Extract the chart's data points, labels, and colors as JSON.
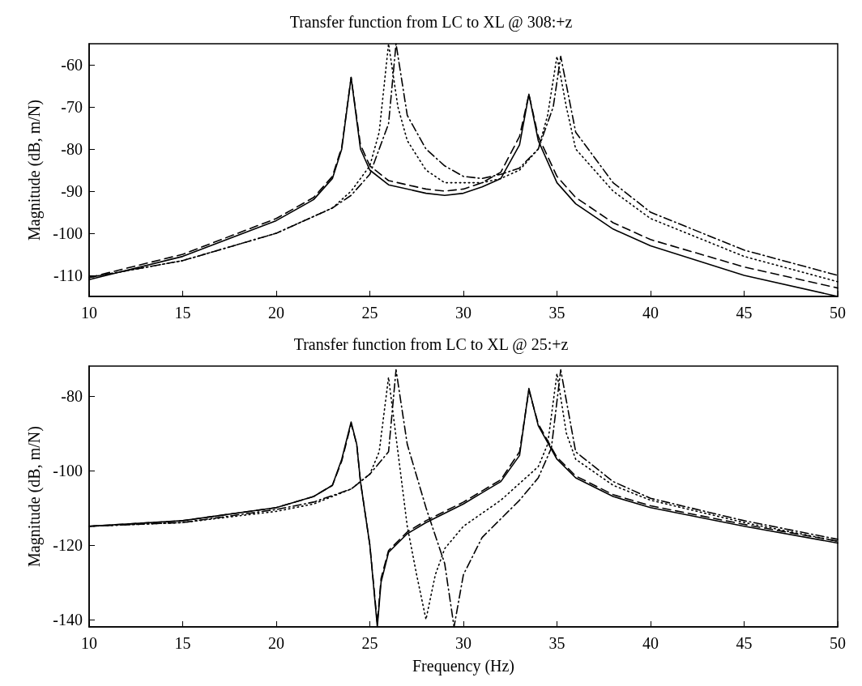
{
  "chart_data": [
    {
      "type": "line",
      "title": "Transfer function from LC to XL @ 308:+z",
      "ylabel": "Magnitude (dB, m/N)",
      "xlim": [
        10,
        50
      ],
      "xticks": [
        10,
        15,
        20,
        25,
        30,
        35,
        40,
        45,
        50
      ],
      "ylim": [
        -115,
        -55
      ],
      "yticks": [
        -110,
        -100,
        -90,
        -80,
        -70,
        -60
      ],
      "grid": false,
      "marker": "none",
      "series": [
        {
          "color": "#000000",
          "line_style": "solid",
          "x": [
            10,
            15,
            20,
            22,
            23,
            23.5,
            24,
            24.5,
            25,
            26,
            28,
            29,
            30,
            31,
            32,
            33,
            33.5,
            34,
            35,
            36,
            38,
            40,
            45,
            50
          ],
          "values": [
            -111,
            -105.5,
            -97,
            -92,
            -87,
            -80,
            -63,
            -80,
            -85,
            -88.5,
            -90.5,
            -91,
            -90.5,
            -89,
            -87,
            -79,
            -67,
            -78,
            -88,
            -93,
            -99,
            -103,
            -110,
            -115
          ]
        },
        {
          "color": "#000000",
          "line_style": "dashed",
          "x": [
            10,
            15,
            20,
            22,
            23,
            23.5,
            24,
            24.5,
            25,
            26,
            28,
            29,
            30,
            31,
            32,
            33,
            33.5,
            34,
            35,
            36,
            38,
            40,
            45,
            50
          ],
          "values": [
            -110.5,
            -105,
            -96.5,
            -91.5,
            -86.5,
            -79.5,
            -63,
            -79,
            -84,
            -87.5,
            -89.5,
            -90,
            -89.5,
            -88,
            -85.5,
            -77,
            -67,
            -77,
            -86.5,
            -91.5,
            -97.5,
            -101.5,
            -108,
            -113
          ]
        },
        {
          "color": "#000000",
          "line_style": "dotted",
          "x": [
            10,
            15,
            20,
            23,
            24,
            25,
            25.5,
            26,
            26.5,
            27,
            28,
            29,
            30,
            31,
            32,
            33,
            34,
            34.5,
            35,
            35.5,
            36,
            38,
            40,
            45,
            50
          ],
          "values": [
            -110.5,
            -106.5,
            -100,
            -94,
            -90,
            -84,
            -76,
            -55,
            -70,
            -78,
            -85,
            -88,
            -88,
            -88,
            -87,
            -85,
            -80,
            -72,
            -58,
            -70,
            -80,
            -90,
            -96.5,
            -105.5,
            -111.5
          ]
        },
        {
          "color": "#000000",
          "line_style": "dashdot",
          "x": [
            10,
            15,
            20,
            23,
            24,
            25,
            26,
            26.4,
            27,
            28,
            29,
            30,
            31,
            32,
            33,
            34,
            34.8,
            35.2,
            36,
            38,
            40,
            45,
            50
          ],
          "values": [
            -110.5,
            -106.5,
            -100,
            -94,
            -91,
            -86,
            -74,
            -55,
            -72,
            -80,
            -84,
            -86.5,
            -87,
            -86,
            -84.5,
            -80,
            -70,
            -58,
            -76,
            -88,
            -95,
            -104,
            -110
          ]
        }
      ]
    },
    {
      "type": "line",
      "title": "Transfer function from LC to XL @ 25:+z",
      "xlabel": "Frequency (Hz)",
      "ylabel": "Magnitude (dB, m/N)",
      "xlim": [
        10,
        50
      ],
      "xticks": [
        10,
        15,
        20,
        25,
        30,
        35,
        40,
        45,
        50
      ],
      "ylim": [
        -142,
        -72
      ],
      "yticks": [
        -140,
        -120,
        -100,
        -80
      ],
      "grid": false,
      "marker": "none",
      "series": [
        {
          "color": "#000000",
          "line_style": "solid",
          "x": [
            10,
            15,
            20,
            22,
            23,
            23.5,
            24,
            24.3,
            24.5,
            25,
            25.4,
            25.6,
            26,
            27,
            28,
            30,
            31,
            32,
            33,
            33.5,
            34,
            35,
            36,
            38,
            40,
            45,
            50
          ],
          "values": [
            -115,
            -113.5,
            -110,
            -107,
            -104,
            -97,
            -87,
            -93,
            -103,
            -120,
            -142,
            -130,
            -122,
            -117,
            -114,
            -109,
            -106,
            -103,
            -96,
            -78,
            -88,
            -97,
            -102,
            -107,
            -110,
            -115,
            -119.5
          ]
        },
        {
          "color": "#000000",
          "line_style": "dashed",
          "x": [
            10,
            15,
            20,
            22,
            23,
            23.5,
            24,
            24.3,
            24.5,
            25,
            25.4,
            25.6,
            26,
            27,
            28,
            30,
            31,
            32,
            33,
            33.5,
            34,
            35,
            36,
            38,
            40,
            45,
            50
          ],
          "values": [
            -115,
            -113.5,
            -110,
            -107,
            -104,
            -97.5,
            -87.5,
            -93,
            -103,
            -120,
            -141,
            -129,
            -121.5,
            -116.5,
            -113.5,
            -108.5,
            -105.5,
            -102.5,
            -95,
            -78.5,
            -87.5,
            -96.5,
            -101.5,
            -106.5,
            -109.5,
            -114.5,
            -119
          ]
        },
        {
          "color": "#000000",
          "line_style": "dotted",
          "x": [
            10,
            15,
            20,
            22,
            24,
            25,
            25.5,
            26,
            26.5,
            27,
            27.5,
            28,
            28.5,
            29,
            30,
            32,
            34,
            34.5,
            35,
            35.5,
            36,
            38,
            40,
            45,
            50
          ],
          "values": [
            -115,
            -114,
            -111,
            -109,
            -105,
            -101,
            -95,
            -75,
            -95,
            -115,
            -128,
            -140,
            -128,
            -121,
            -115,
            -108,
            -99,
            -93,
            -74,
            -90,
            -97,
            -104,
            -108,
            -114,
            -119
          ]
        },
        {
          "color": "#000000",
          "line_style": "dashdot",
          "x": [
            10,
            15,
            20,
            22,
            24,
            25,
            26,
            26.4,
            27,
            28,
            29,
            29.5,
            30,
            31,
            32,
            33,
            34,
            34.7,
            35.2,
            36,
            38,
            40,
            45,
            50
          ],
          "values": [
            -115,
            -114,
            -110.5,
            -108.5,
            -105,
            -101,
            -95,
            -73,
            -93,
            -110,
            -125,
            -142,
            -128,
            -118,
            -113,
            -108,
            -102,
            -94,
            -73,
            -95,
            -103,
            -107.5,
            -113.5,
            -118.5
          ]
        }
      ]
    }
  ]
}
